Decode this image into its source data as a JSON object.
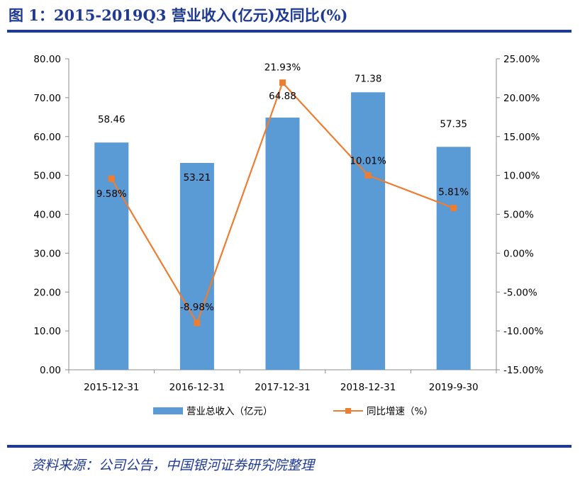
{
  "title": "图 1：2015-2019Q3 营业收入(亿元)及同比(%)",
  "source": "资料来源：公司公告，中国银河证券研究院整理",
  "colors": {
    "bar": "#5b9bd5",
    "line": "#ed7d31",
    "accent": "#1f3a93"
  },
  "chart_data": {
    "type": "bar",
    "categories": [
      "2015-12-31",
      "2016-12-31",
      "2017-12-31",
      "2018-12-31",
      "2019-9-30"
    ],
    "series": [
      {
        "name": "营业总收入（亿元）",
        "type": "bar",
        "axis": "left",
        "values": [
          58.46,
          53.21,
          64.88,
          71.38,
          57.35
        ],
        "labels": [
          "58.46",
          "53.21",
          "64.88",
          "71.38",
          "57.35"
        ]
      },
      {
        "name": "同比增速（%）",
        "type": "line",
        "axis": "right",
        "values": [
          9.58,
          -8.98,
          21.93,
          10.01,
          5.81
        ],
        "labels": [
          "9.58%",
          "-8.98%",
          "21.93%",
          "10.01%",
          "5.81%"
        ]
      }
    ],
    "y_left": {
      "range": [
        0,
        80
      ],
      "ticks": [
        0,
        10,
        20,
        30,
        40,
        50,
        60,
        70,
        80
      ],
      "tick_labels": [
        "0.00",
        "10.00",
        "20.00",
        "30.00",
        "40.00",
        "50.00",
        "60.00",
        "70.00",
        "80.00"
      ]
    },
    "y_right": {
      "range": [
        -15,
        25
      ],
      "ticks": [
        -15,
        -10,
        -5,
        0,
        5,
        10,
        15,
        20,
        25
      ],
      "tick_labels": [
        "-15.00%",
        "-10.00%",
        "-5.00%",
        "0.00%",
        "5.00%",
        "10.00%",
        "15.00%",
        "20.00%",
        "25.00%"
      ]
    },
    "grid": false,
    "legend_position": "bottom"
  }
}
